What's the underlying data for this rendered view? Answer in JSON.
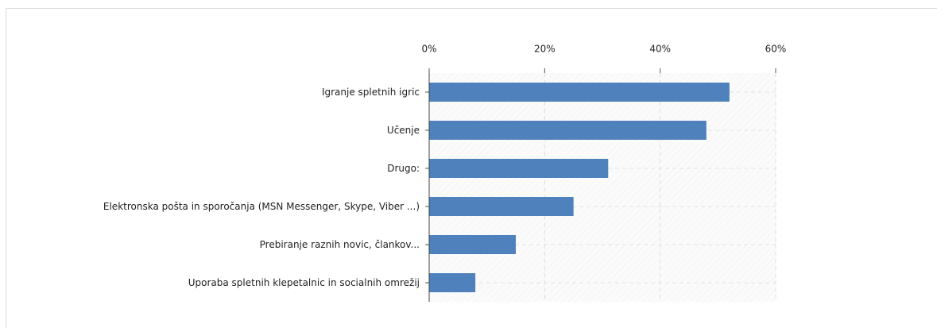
{
  "chart_data": {
    "type": "bar",
    "orientation": "horizontal",
    "categories": [
      "Igranje spletnih igric",
      "Učenje",
      "Drugo:",
      "Elektronska pošta in sporočanja (MSN Messenger, Skype, Viber ...)",
      "Prebiranje raznih novic, člankov...",
      "Uporaba spletnih klepetalnic in socialnih omrežij"
    ],
    "values": [
      52,
      48,
      31,
      25,
      15,
      8
    ],
    "color": "#4f81bd",
    "xlim": [
      0,
      60
    ],
    "xticks": [
      {
        "value": 0,
        "label": "0%"
      },
      {
        "value": 20,
        "label": "20%"
      },
      {
        "value": 40,
        "label": "40%"
      },
      {
        "value": 60,
        "label": "60%"
      }
    ],
    "grid": true
  }
}
